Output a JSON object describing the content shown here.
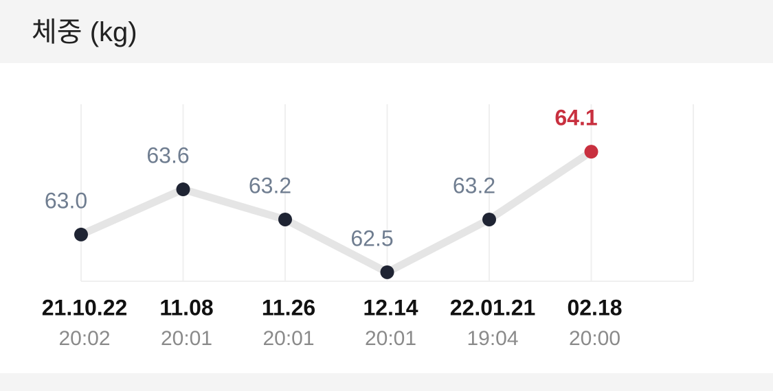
{
  "header": {
    "title": "체중 (kg)"
  },
  "chart_data": {
    "type": "line",
    "categories": [
      "21.10.22",
      "11.08",
      "11.26",
      "12.14",
      "22.01.21",
      "02.18"
    ],
    "times": [
      "20:02",
      "20:01",
      "20:01",
      "20:01",
      "19:04",
      "20:00"
    ],
    "values": [
      63.0,
      63.6,
      63.2,
      62.5,
      63.2,
      64.1
    ],
    "value_labels": [
      "63.0",
      "63.6",
      "63.2",
      "62.5",
      "63.2",
      "64.1"
    ],
    "ylim": [
      62.38,
      64.73
    ],
    "color": "#1f2433",
    "line_color": "#e5e5e5",
    "highlight_color": "#c8303f",
    "grid": true
  }
}
